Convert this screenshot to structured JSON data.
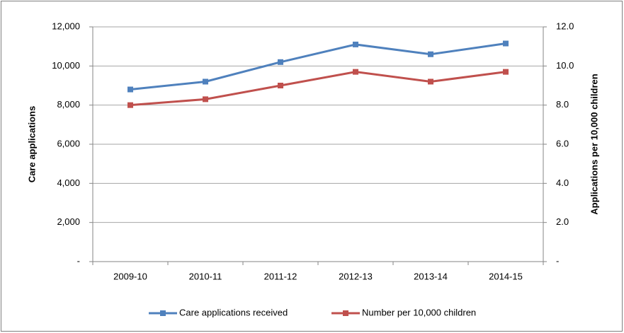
{
  "chart_data": {
    "type": "line",
    "categories": [
      "2009-10",
      "2010-11",
      "2011-12",
      "2012-13",
      "2013-14",
      "2014-15"
    ],
    "y_label": "Care applications",
    "y2_label": "Applications  per 10,000 children",
    "series": [
      {
        "name": "Care applications received",
        "color": "#4f81bd",
        "values": [
          8800,
          9200,
          10200,
          11100,
          10600,
          11150
        ]
      },
      {
        "name": "Number per 10,000 children",
        "color": "#c0504d",
        "values": [
          8.0,
          8.3,
          9.0,
          9.7,
          9.2,
          9.7
        ],
        "axis": "y2"
      }
    ],
    "ylim": [
      0,
      12000
    ],
    "yticks": [
      {
        "value": 0,
        "label": "-"
      },
      {
        "value": 2000,
        "label": "2,000"
      },
      {
        "value": 4000,
        "label": "4,000"
      },
      {
        "value": 6000,
        "label": "6,000"
      },
      {
        "value": 8000,
        "label": "8,000"
      },
      {
        "value": 10000,
        "label": "10,000"
      },
      {
        "value": 12000,
        "label": "12,000"
      }
    ],
    "y2lim": [
      0,
      12
    ],
    "y2ticks": [
      {
        "value": 0,
        "label": "-"
      },
      {
        "value": 2,
        "label": "2.0"
      },
      {
        "value": 4,
        "label": "4.0"
      },
      {
        "value": 6,
        "label": "6.0"
      },
      {
        "value": 8,
        "label": "8.0"
      },
      {
        "value": 10,
        "label": "10.0"
      },
      {
        "value": 12,
        "label": "12.0"
      }
    ],
    "grid": true,
    "legend": "bottom"
  }
}
